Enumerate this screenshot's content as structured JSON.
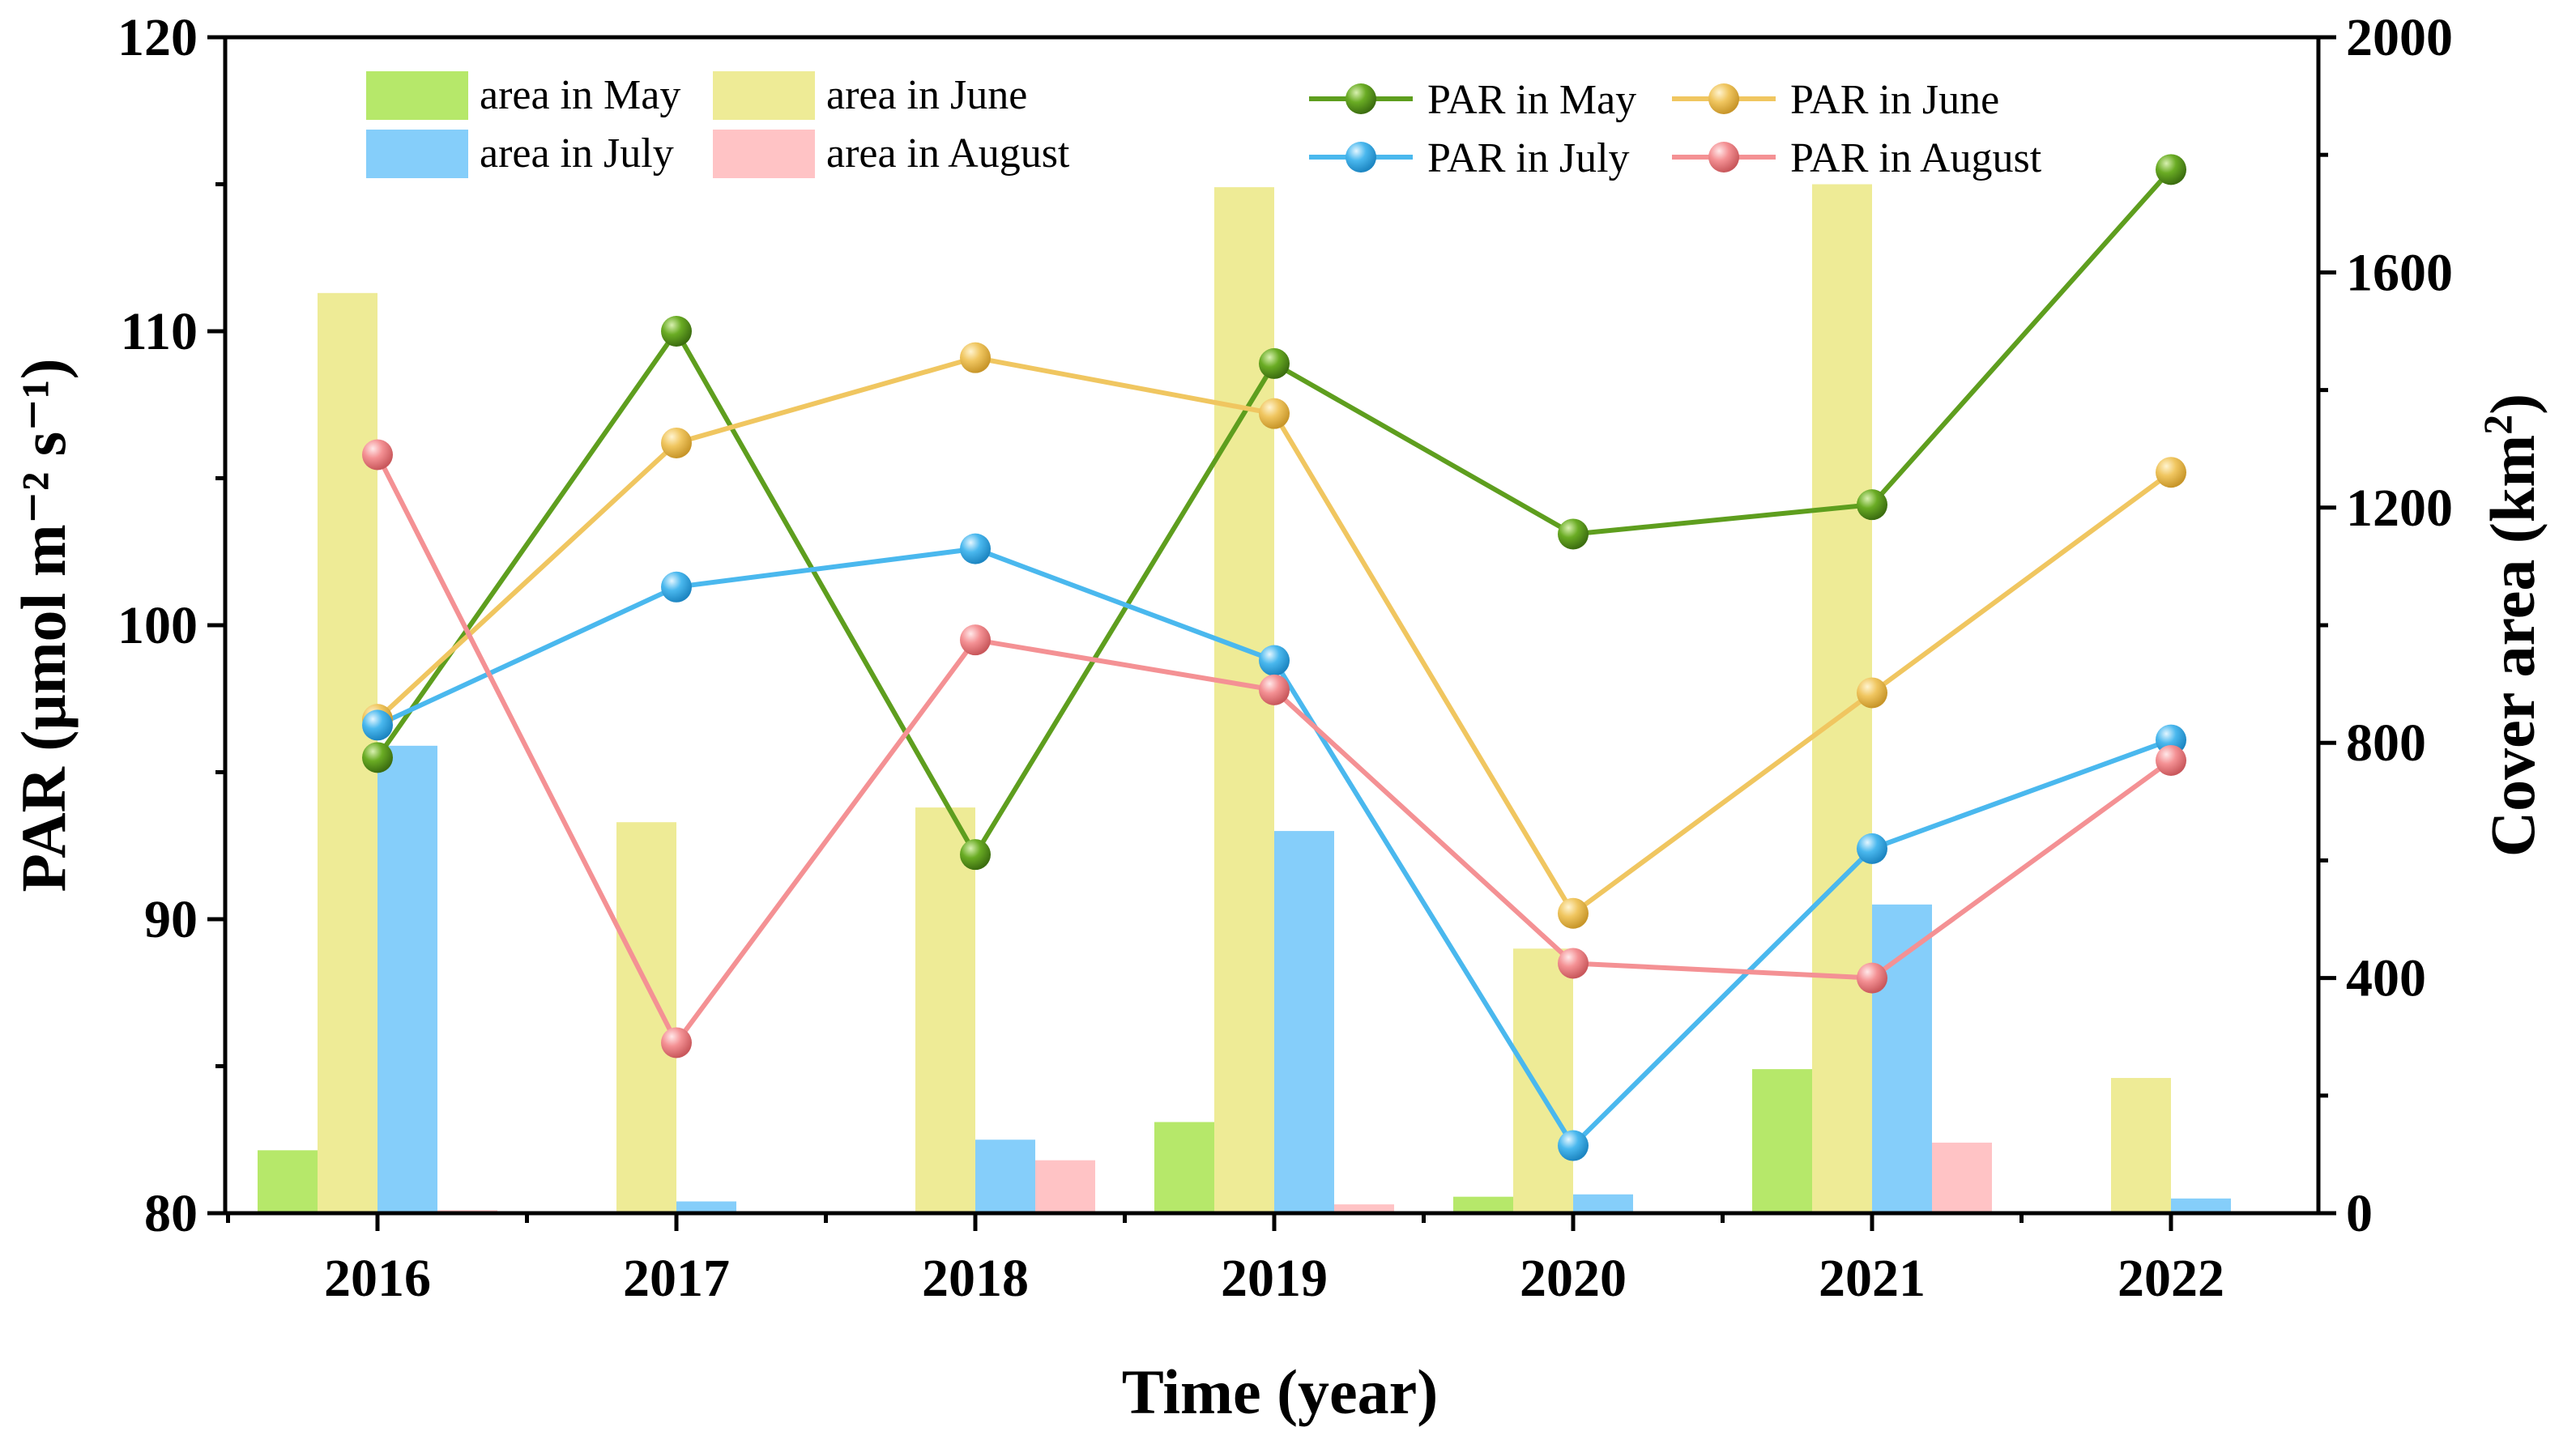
{
  "chart_data": {
    "type": "bar+line",
    "categories": [
      "2016",
      "2017",
      "2018",
      "2019",
      "2020",
      "2021",
      "2022"
    ],
    "xlabel": "Time (year)",
    "ylabel_left": "PAR (μmol m⁻² s⁻¹)",
    "ylabel_right": {
      "text": "Cover area (km",
      "sup": "2",
      "close": ")"
    },
    "ylim_left": [
      80,
      120
    ],
    "yticks_left": [
      "80",
      "90",
      "100",
      "110",
      "120"
    ],
    "ylim_right": [
      0,
      2000
    ],
    "yticks_right": [
      "0",
      "400",
      "800",
      "1200",
      "1600",
      "2000"
    ],
    "bar_series": [
      {
        "name": "area in May",
        "color": "#b6e86a",
        "values": [
          107,
          0,
          0,
          155,
          28,
          245,
          0
        ]
      },
      {
        "name": "area in June",
        "color": "#eeeb96",
        "values": [
          1565,
          665,
          690,
          1745,
          450,
          1750,
          230
        ]
      },
      {
        "name": "area in July",
        "color": "#85cefa",
        "values": [
          795,
          20,
          125,
          650,
          32,
          525,
          25
        ]
      },
      {
        "name": "area in August",
        "color": "#ffc3c5",
        "values": [
          5,
          0,
          90,
          15,
          0,
          120,
          0
        ]
      }
    ],
    "line_series": [
      {
        "name": "PAR in May",
        "color": "#5e9e1e",
        "values": [
          95.5,
          110.0,
          92.2,
          108.9,
          103.1,
          104.1,
          115.5
        ]
      },
      {
        "name": "PAR in June",
        "color": "#f0c660",
        "values": [
          96.8,
          106.2,
          109.1,
          107.2,
          90.2,
          97.7,
          105.2
        ]
      },
      {
        "name": "PAR in July",
        "color": "#4ab8ee",
        "values": [
          96.6,
          101.3,
          102.6,
          98.8,
          82.3,
          92.4,
          96.1
        ]
      },
      {
        "name": "PAR in August",
        "color": "#f49194",
        "values": [
          105.8,
          85.8,
          99.5,
          97.8,
          88.5,
          88.0,
          95.4
        ]
      }
    ]
  }
}
